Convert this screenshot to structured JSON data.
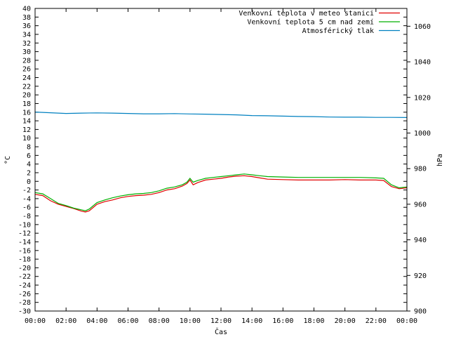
{
  "chart_data": {
    "type": "line",
    "xlabel": "Čas",
    "ylabel_left": "°C",
    "ylabel_right": "hPa",
    "x_ticks": [
      "00:00",
      "02:00",
      "04:00",
      "06:00",
      "08:00",
      "10:00",
      "12:00",
      "14:00",
      "16:00",
      "18:00",
      "20:00",
      "22:00",
      "00:00"
    ],
    "xlim_hours": [
      0,
      24
    ],
    "ylim_left": [
      -30,
      40
    ],
    "ylim_right": [
      900,
      1070
    ],
    "y_ticks_left": [
      40,
      38,
      36,
      34,
      32,
      30,
      28,
      26,
      24,
      22,
      20,
      18,
      16,
      14,
      12,
      10,
      8,
      6,
      4,
      2,
      0,
      -2,
      -4,
      -6,
      -8,
      -10,
      -12,
      -14,
      -16,
      -18,
      -20,
      -22,
      -24,
      -26,
      -28,
      -30
    ],
    "y_ticks_right": [
      1060,
      1040,
      1020,
      1000,
      980,
      960,
      940,
      920,
      900
    ],
    "legend_position": "top-right",
    "grid": false,
    "series": [
      {
        "name": "Venkovní teplota v meteo stanici",
        "color": "#e00000",
        "axis": "left",
        "hours": [
          0,
          0.5,
          1,
          1.5,
          2,
          2.5,
          3,
          3.25,
          3.5,
          4,
          4.5,
          5,
          5.5,
          6,
          6.5,
          7,
          7.5,
          8,
          8.5,
          9,
          9.5,
          9.8,
          10,
          10.2,
          10.5,
          11,
          11.5,
          12,
          12.5,
          13,
          13.5,
          14,
          14.5,
          15,
          16,
          17,
          18,
          19,
          20,
          21,
          22,
          22.5,
          23,
          23.5,
          24
        ],
        "values": [
          -3,
          -3.3,
          -4.5,
          -5.3,
          -5.8,
          -6.3,
          -6.9,
          -7.1,
          -6.8,
          -5.3,
          -4.7,
          -4.3,
          -3.8,
          -3.5,
          -3.3,
          -3.2,
          -3,
          -2.6,
          -2,
          -1.7,
          -1.1,
          -0.5,
          0.3,
          -0.8,
          -0.3,
          0.3,
          0.5,
          0.7,
          1,
          1.2,
          1.3,
          1.1,
          0.8,
          0.5,
          0.4,
          0.3,
          0.3,
          0.3,
          0.4,
          0.3,
          0.3,
          0.2,
          -1.2,
          -1.7,
          -1.5
        ]
      },
      {
        "name": "Venkovní teplota 5 cm nad zemí",
        "color": "#00b000",
        "axis": "left",
        "hours": [
          0,
          0.5,
          1,
          1.5,
          2,
          2.5,
          3,
          3.25,
          3.5,
          4,
          4.5,
          5,
          5.5,
          6,
          6.5,
          7,
          7.5,
          8,
          8.5,
          9,
          9.5,
          9.8,
          10,
          10.2,
          10.5,
          11,
          11.5,
          12,
          12.5,
          13,
          13.5,
          14,
          14.5,
          15,
          16,
          17,
          18,
          19,
          20,
          21,
          22,
          22.5,
          23,
          23.5,
          24
        ],
        "values": [
          -2.6,
          -2.9,
          -4,
          -5.1,
          -5.6,
          -6.2,
          -6.6,
          -6.8,
          -6.4,
          -4.9,
          -4.3,
          -3.8,
          -3.4,
          -3.1,
          -2.9,
          -2.8,
          -2.6,
          -2.2,
          -1.6,
          -1.3,
          -0.8,
          -0.2,
          0.7,
          -0.2,
          0.2,
          0.7,
          0.9,
          1.1,
          1.3,
          1.5,
          1.7,
          1.5,
          1.3,
          1.1,
          1,
          0.9,
          0.9,
          0.9,
          0.9,
          0.9,
          0.8,
          0.7,
          -0.8,
          -1.5,
          -1.3
        ]
      },
      {
        "name": "Atmosférický tlak",
        "color": "#0080c0",
        "axis": "right",
        "hours": [
          0,
          1,
          2,
          3,
          4,
          5,
          6,
          7,
          8,
          9,
          10,
          11,
          12,
          13,
          14,
          15,
          16,
          17,
          18,
          19,
          20,
          21,
          22,
          23,
          24
        ],
        "values": [
          1011.8,
          1011.4,
          1011.0,
          1011.2,
          1011.3,
          1011.2,
          1011.0,
          1010.8,
          1010.8,
          1010.9,
          1010.7,
          1010.6,
          1010.4,
          1010.2,
          1009.8,
          1009.7,
          1009.5,
          1009.3,
          1009.2,
          1009.0,
          1008.9,
          1008.9,
          1008.8,
          1008.8,
          1008.7
        ]
      }
    ]
  }
}
